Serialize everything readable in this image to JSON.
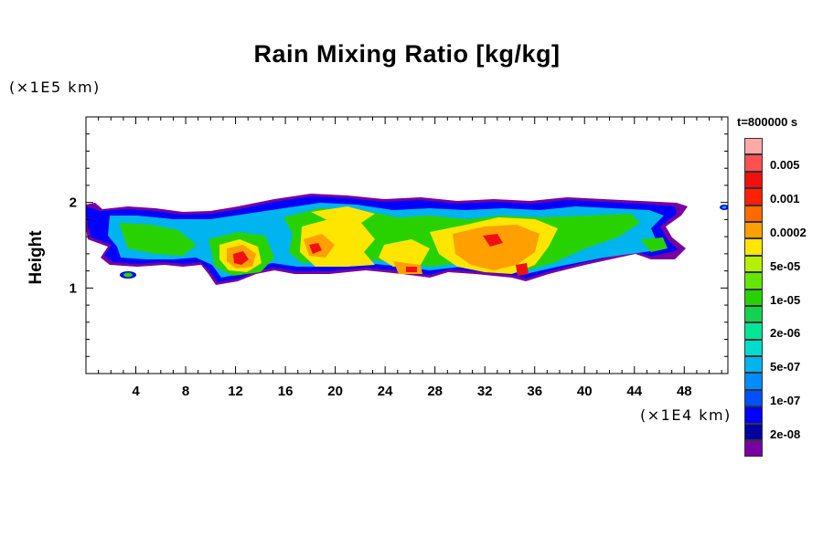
{
  "chart_data": {
    "type": "heatmap",
    "title": "Rain Mixing Ratio [kg/kg]",
    "ylabel": "Height",
    "y_unit": "(×1E5 km)",
    "x_unit": "(×1E4 km)",
    "time_label": "t=800000 s",
    "xlim": [
      0,
      51.5
    ],
    "ylim": [
      0,
      3
    ],
    "x_ticks": [
      "4",
      "8",
      "12",
      "16",
      "20",
      "24",
      "28",
      "32",
      "36",
      "40",
      "44",
      "48"
    ],
    "y_ticks": [
      "1",
      "2"
    ],
    "legend": {
      "placement": "right",
      "levels": [
        {
          "label": "",
          "color": "#ffa8a8"
        },
        {
          "label": "0.005",
          "color": "#ff5050"
        },
        {
          "label": "",
          "color": "#f01010"
        },
        {
          "label": "0.001",
          "color": "#ff2000"
        },
        {
          "label": "",
          "color": "#ff6a00"
        },
        {
          "label": "0.0002",
          "color": "#ffa000"
        },
        {
          "label": "",
          "color": "#ffe600"
        },
        {
          "label": "5e-05",
          "color": "#b4f000"
        },
        {
          "label": "",
          "color": "#64e600"
        },
        {
          "label": "1e-05",
          "color": "#28d200"
        },
        {
          "label": "",
          "color": "#14d250"
        },
        {
          "label": "2e-06",
          "color": "#00e696"
        },
        {
          "label": "",
          "color": "#00dccc"
        },
        {
          "label": "5e-07",
          "color": "#00b4f0"
        },
        {
          "label": "",
          "color": "#008cff"
        },
        {
          "label": "1e-07",
          "color": "#0050ff"
        },
        {
          "label": "",
          "color": "#0000ff"
        },
        {
          "label": "2e-08",
          "color": "#0000a0"
        },
        {
          "label": "",
          "color": "#7800a0"
        }
      ]
    }
  }
}
